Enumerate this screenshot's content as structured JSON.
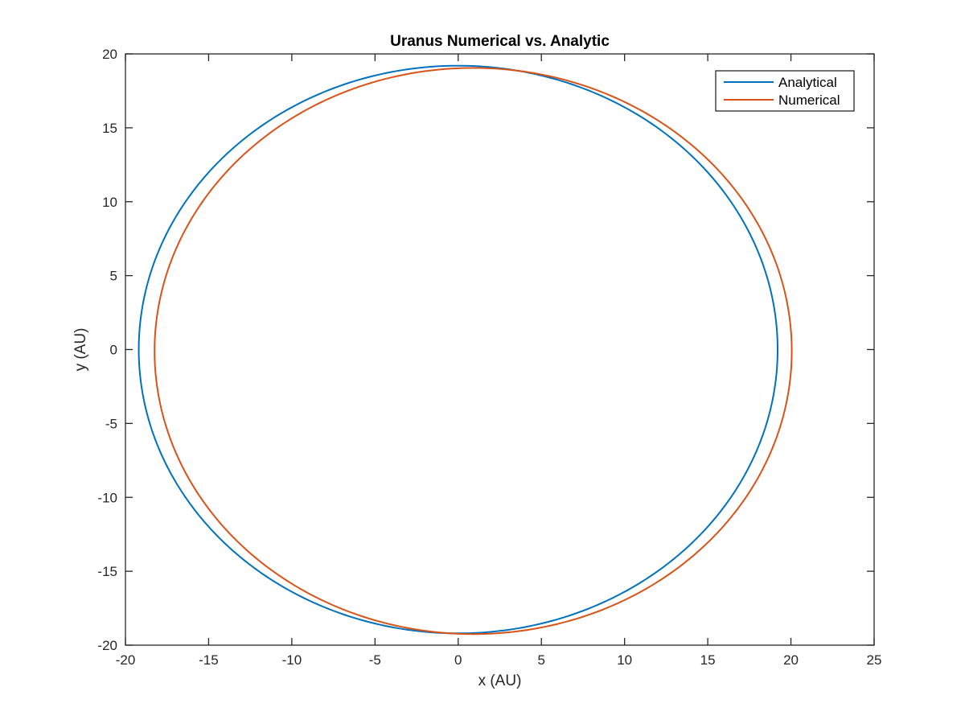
{
  "chart_data": {
    "type": "line",
    "title": "Uranus Numerical vs. Analytic",
    "xlabel": "x (AU)",
    "ylabel": "y (AU)",
    "xlim": [
      -20,
      25
    ],
    "ylim": [
      -20,
      20
    ],
    "xticks": [
      -20,
      -15,
      -10,
      -5,
      0,
      5,
      10,
      15,
      20,
      25
    ],
    "yticks": [
      -20,
      -15,
      -10,
      -5,
      0,
      5,
      10,
      15,
      20
    ],
    "grid": false,
    "legend_position": "top-right",
    "series": [
      {
        "name": "Analytical",
        "color": "#0072BD",
        "shape": "ellipse",
        "center": [
          0,
          0
        ],
        "semi_axis_x": 19.2,
        "semi_axis_y": 19.2,
        "tilt": 0
      },
      {
        "name": "Numerical",
        "color": "#D95319",
        "shape": "ellipse",
        "center": [
          0.9,
          -0.1
        ],
        "semi_axis_x": 19.15,
        "semi_axis_y": 19.15,
        "tilt": 0
      }
    ]
  }
}
